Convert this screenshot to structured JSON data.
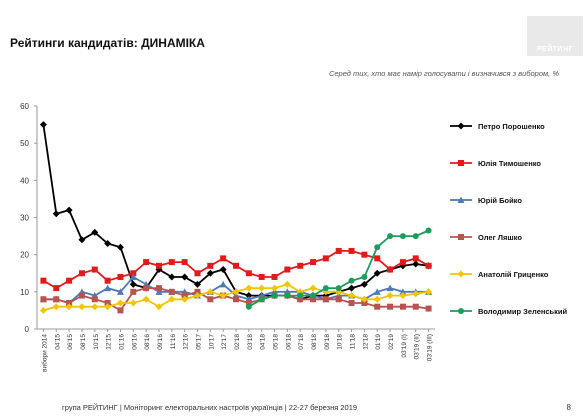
{
  "header": {
    "title": "Рейтинги кандидатів: ДИНАМІКА",
    "subtitle": "Серед тих, хто має намір голосувати і визначився з вибором, %",
    "logo_text": "РЕЙТИНГ"
  },
  "footer": {
    "text": "група РЕЙТИНГ | Моніторинг електоральних настроїв українців  |  22-27 березня 2019",
    "page": "8"
  },
  "chart_data": {
    "type": "line",
    "title": "Рейтинги кандидатів: ДИНАМІКА",
    "subtitle": "Серед тих, хто має намір голосувати і визначився з вибором, %",
    "ylim": [
      0,
      60
    ],
    "yticks": [
      0,
      10,
      20,
      30,
      40,
      50,
      60
    ],
    "grid": false,
    "legend_position": "right",
    "categories": [
      "вибори 2014",
      "04'15",
      "06'15",
      "08'15",
      "10'15",
      "12'15",
      "01'16",
      "06'16",
      "08'16",
      "09'16",
      "11'16",
      "12'16",
      "05'17",
      "10'17",
      "12'17",
      "02'18",
      "03'18",
      "04'18",
      "05'18",
      "06'18",
      "07'18",
      "08'18",
      "09'18",
      "10'18",
      "11'18",
      "12'18",
      "01'19",
      "02'19",
      "03'19 (I)",
      "03'19 (II)",
      "03'19 (III)"
    ],
    "xtick_labels": [
      "вибори 2014",
      "04'15",
      "06'15",
      "08'15",
      "10'15",
      "12'15",
      "01'16",
      "06'16",
      "08'16",
      "09'16",
      "11'16",
      "12'16",
      "05'17",
      "10'17",
      "12'17",
      "02'18",
      "03'18",
      "04'18",
      "05'18",
      "06'18",
      "07'18",
      "08'18",
      "09'18",
      "10'18",
      "11'18",
      "12'18",
      "01'19",
      "02'19",
      "03'19 (I)",
      "03'19 (II)",
      "03'19 (III)"
    ],
    "series": [
      {
        "name": "Петро Порошенко",
        "color": "#000000",
        "marker": "diamond",
        "values": [
          55,
          31,
          32,
          24,
          26,
          23,
          22,
          12,
          11,
          16,
          14,
          14,
          12,
          15,
          16,
          10,
          9,
          9,
          9,
          9,
          8,
          9,
          9,
          10,
          11,
          12,
          15,
          16,
          17,
          17.5,
          17
        ]
      },
      {
        "name": "Юлія Тимошенко",
        "color": "#e31a1c",
        "marker": "square",
        "values": [
          13,
          11,
          13,
          15,
          16,
          13,
          14,
          15,
          18,
          17,
          18,
          18,
          15,
          17,
          19,
          17,
          15,
          14,
          14,
          16,
          17,
          18,
          19,
          21,
          21,
          20,
          19,
          16,
          18,
          19,
          17
        ]
      },
      {
        "name": "Юрій Бойко",
        "color": "#4a7ab8",
        "marker": "triangle",
        "values": [
          8,
          8,
          7,
          10,
          9,
          11,
          10,
          14,
          12,
          10,
          10,
          10,
          9,
          10,
          12,
          9,
          8,
          9,
          10,
          10,
          10,
          9,
          8,
          9,
          9,
          8,
          10,
          11,
          10,
          10,
          10
        ]
      },
      {
        "name": "Олег Ляшко",
        "color": "#b85450",
        "marker": "square",
        "values": [
          8,
          8,
          7,
          9,
          8,
          7,
          5,
          10,
          11,
          11,
          10,
          9,
          10,
          8,
          9,
          8,
          7,
          8,
          9,
          9,
          8,
          8,
          8,
          8,
          7,
          7,
          6,
          6,
          6,
          6,
          5.5
        ]
      },
      {
        "name": "Анатолій Гриценко",
        "color": "#f5c400",
        "marker": "diamond",
        "values": [
          5,
          6,
          6,
          6,
          6,
          6,
          7,
          7,
          8,
          6,
          8,
          8,
          9,
          10,
          9,
          10,
          11,
          11,
          11,
          12,
          10,
          11,
          10,
          10,
          9,
          8,
          8,
          9,
          9,
          9.5,
          10
        ]
      },
      {
        "name": "Володимир Зеленський",
        "color": "#1a9e5a",
        "marker": "circle",
        "values": [
          null,
          null,
          null,
          null,
          null,
          null,
          null,
          null,
          null,
          null,
          null,
          null,
          null,
          null,
          null,
          null,
          6,
          8,
          9,
          9,
          9,
          9,
          11,
          11,
          13,
          14,
          22,
          25,
          25,
          25,
          26.5
        ]
      }
    ]
  }
}
